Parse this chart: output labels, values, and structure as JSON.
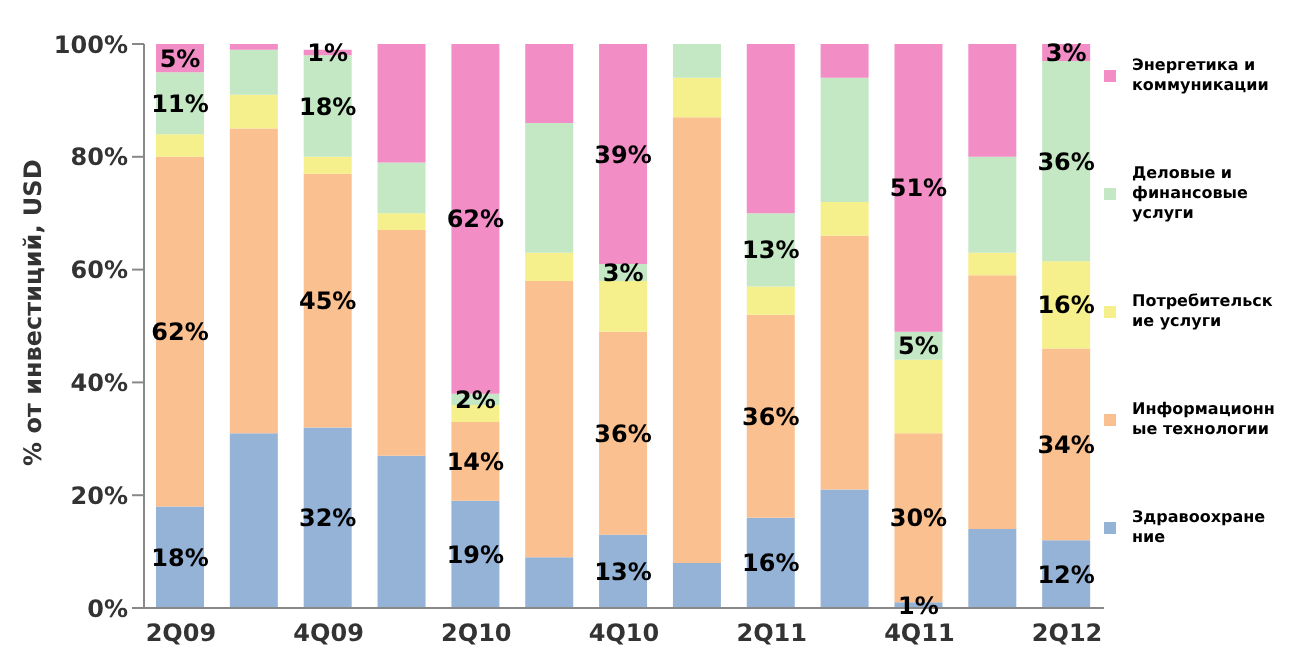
{
  "chart_data": {
    "type": "bar",
    "stacked": true,
    "ylabel": "% от инвестиций, USD",
    "categories": [
      "2Q09",
      null,
      "4Q09",
      null,
      "2Q10",
      null,
      "4Q10",
      null,
      "2Q11",
      null,
      "4Q11",
      null,
      "2Q12"
    ],
    "ylim": [
      0,
      100
    ],
    "yticks": [
      {
        "value": 0,
        "label": "0%"
      },
      {
        "value": 20,
        "label": "20%"
      },
      {
        "value": 40,
        "label": "40%"
      },
      {
        "value": 60,
        "label": "60%"
      },
      {
        "value": 80,
        "label": "80%"
      },
      {
        "value": 100,
        "label": "100%"
      }
    ],
    "grid": false,
    "legend": "right",
    "series": [
      {
        "name": "Здравоохранение",
        "color": "#95b3d7",
        "values": [
          18,
          31,
          32,
          27,
          19,
          9,
          13,
          8,
          16,
          21,
          1,
          14,
          12
        ],
        "value_labels": [
          "18%",
          null,
          "32%",
          null,
          "19%",
          null,
          "13%",
          null,
          "16%",
          null,
          "1%",
          null,
          "12%"
        ]
      },
      {
        "name": "Информационные технологии",
        "color": "#fac090",
        "values": [
          62,
          54,
          45,
          40,
          14,
          49,
          36,
          79,
          36,
          45,
          30,
          45,
          34
        ],
        "value_labels": [
          "62%",
          null,
          "45%",
          null,
          "14%",
          null,
          "36%",
          null,
          "36%",
          null,
          "30%",
          null,
          "34%"
        ]
      },
      {
        "name": "Потребительские услуги",
        "color": "#f5f08c",
        "values": [
          4,
          6,
          3,
          3,
          3,
          5,
          9,
          7,
          5,
          6,
          13,
          4,
          15.5
        ],
        "value_labels": [
          null,
          null,
          null,
          null,
          null,
          null,
          null,
          null,
          null,
          null,
          null,
          null,
          "16%"
        ]
      },
      {
        "name": "Деловые и финансовые услуги",
        "color": "#c4e8c4",
        "values": [
          11,
          8,
          18,
          9,
          2,
          23,
          3,
          6,
          13,
          22,
          5,
          17,
          35.5
        ],
        "value_labels": [
          "11%",
          null,
          "18%",
          null,
          "2%",
          null,
          "3%",
          null,
          "13%",
          null,
          "5%",
          null,
          "36%"
        ]
      },
      {
        "name": "Энергетика и коммуникации",
        "color": "#f28dc6",
        "values": [
          5,
          1,
          1,
          21,
          62,
          14,
          39,
          0,
          30,
          6,
          51,
          20,
          3
        ],
        "value_labels": [
          "5%",
          null,
          "1%",
          null,
          "62%",
          null,
          "39%",
          null,
          null,
          null,
          "51%",
          null,
          "3%"
        ]
      }
    ]
  }
}
